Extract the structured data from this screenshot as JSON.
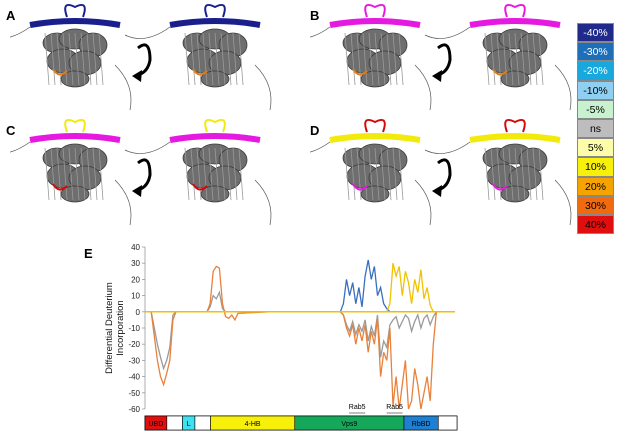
{
  "panels": [
    {
      "letter": "A",
      "highlight_colors": [
        "#1a1f8c",
        "#1a1f8c"
      ],
      "accent": "#d9801c"
    },
    {
      "letter": "B",
      "highlight_colors": [
        "#e619e0",
        "#e619e0"
      ],
      "accent": "#d9801c"
    },
    {
      "letter": "C",
      "highlight_colors": [
        "#e619e0",
        "#f2ea0a"
      ],
      "accent": "#d40a0a"
    },
    {
      "letter": "D",
      "highlight_colors": [
        "#f2ea0a",
        "#d40a0a"
      ],
      "accent": "#e619e0"
    }
  ],
  "legend": [
    {
      "label": "-40%",
      "color": "#1f2a8a",
      "text_color": "#ffffff"
    },
    {
      "label": "-30%",
      "color": "#1c6fb8",
      "text_color": "#ffffff"
    },
    {
      "label": "-20%",
      "color": "#19a8de",
      "text_color": "#ffffff"
    },
    {
      "label": "-10%",
      "color": "#8fd0f2",
      "text_color": "#000000"
    },
    {
      "label": "-5%",
      "color": "#c8f2cf",
      "text_color": "#000000"
    },
    {
      "label": "ns",
      "color": "#bdbdbd",
      "text_color": "#000000"
    },
    {
      "label": "5%",
      "color": "#fdfca8",
      "text_color": "#000000"
    },
    {
      "label": "10%",
      "color": "#f7f00a",
      "text_color": "#000000"
    },
    {
      "label": "20%",
      "color": "#f5a300",
      "text_color": "#000000"
    },
    {
      "label": "30%",
      "color": "#f06a10",
      "text_color": "#000000"
    },
    {
      "label": "40%",
      "color": "#e00f0f",
      "text_color": "#000000"
    }
  ],
  "panel_e_letter": "E",
  "chart_data": {
    "type": "line",
    "ylabel_line1": "Differential Deuterium",
    "ylabel_line2": "Incorporation",
    "ylim": [
      -60,
      40
    ],
    "yticks": [
      40,
      30,
      20,
      10,
      0,
      -10,
      -20,
      -30,
      -40,
      -50,
      -60
    ],
    "xlim": [
      0,
      100
    ],
    "series": [
      {
        "color": "#9a9a9a",
        "x": [
          0,
          1,
          2,
          3,
          4,
          5,
          6,
          7,
          8,
          9,
          10,
          12,
          14,
          16,
          18,
          20,
          21,
          22,
          23,
          24,
          25,
          26,
          27,
          28,
          29,
          30,
          40,
          50,
          60,
          63,
          64,
          65,
          66,
          67,
          68,
          69,
          70,
          71,
          72,
          73,
          74,
          75,
          76,
          77,
          78,
          79,
          80,
          81,
          82,
          83,
          84,
          85,
          86,
          87,
          88,
          89,
          90,
          91,
          92,
          93,
          94,
          95,
          96,
          97,
          98,
          99,
          100
        ],
        "y": [
          0,
          0,
          0,
          -10,
          -20,
          -28,
          -35,
          -30,
          -22,
          -2,
          0,
          0,
          0,
          0,
          0,
          0,
          3,
          10,
          8,
          12,
          2,
          0,
          0,
          0,
          0,
          0,
          0,
          0,
          0,
          0,
          -2,
          -8,
          -12,
          -6,
          -14,
          -8,
          -12,
          -5,
          -18,
          -9,
          -15,
          -2,
          -28,
          -18,
          -22,
          -8,
          -5,
          -3,
          -10,
          -6,
          -2,
          -4,
          -12,
          -6,
          -2,
          -10,
          -4,
          -2,
          -8,
          -3,
          0,
          0,
          0,
          0,
          0,
          0,
          0
        ]
      },
      {
        "color": "#e8813a",
        "x": [
          0,
          1,
          2,
          3,
          4,
          5,
          6,
          7,
          8,
          9,
          10,
          12,
          14,
          16,
          18,
          20,
          21,
          22,
          23,
          24,
          25,
          26,
          27,
          28,
          29,
          30,
          40,
          50,
          60,
          63,
          64,
          65,
          66,
          67,
          68,
          69,
          70,
          71,
          72,
          73,
          74,
          75,
          76,
          77,
          78,
          79,
          80,
          81,
          82,
          83,
          84,
          85,
          86,
          87,
          88,
          89,
          90,
          91,
          92,
          93,
          94,
          95,
          96,
          97,
          98,
          99,
          100
        ],
        "y": [
          0,
          0,
          0,
          -15,
          -30,
          -40,
          -45,
          -38,
          -30,
          -5,
          0,
          0,
          0,
          0,
          0,
          0,
          5,
          25,
          28,
          27,
          5,
          -3,
          -4,
          -2,
          -5,
          -1,
          0,
          0,
          0,
          0,
          -2,
          -10,
          -15,
          -8,
          -20,
          -10,
          -18,
          -8,
          -25,
          -12,
          -20,
          -4,
          -40,
          -25,
          -30,
          -10,
          -58,
          -40,
          -60,
          -45,
          -30,
          -60,
          -55,
          -35,
          -45,
          -60,
          -50,
          -40,
          -55,
          -20,
          0,
          0,
          0,
          0,
          0,
          0,
          0
        ]
      },
      {
        "color": "#3a6fbf",
        "x": [
          0,
          10,
          30,
          40,
          50,
          60,
          63,
          64,
          65,
          66,
          67,
          68,
          69,
          70,
          71,
          72,
          73,
          74,
          75,
          76,
          77,
          78,
          79,
          80,
          100
        ],
        "y": [
          0,
          0,
          0,
          0,
          0,
          0,
          0,
          5,
          20,
          10,
          18,
          5,
          15,
          3,
          22,
          32,
          20,
          28,
          10,
          15,
          5,
          2,
          0,
          0,
          0
        ]
      },
      {
        "color": "#f2c200",
        "x": [
          0,
          40,
          60,
          72,
          74,
          75,
          76,
          77,
          78,
          79,
          80,
          81,
          82,
          83,
          84,
          85,
          86,
          87,
          88,
          89,
          90,
          91,
          92,
          93,
          94,
          95,
          100
        ],
        "y": [
          0,
          0,
          0,
          0,
          0,
          0,
          0,
          0,
          0,
          5,
          30,
          22,
          28,
          10,
          25,
          18,
          5,
          20,
          12,
          26,
          8,
          15,
          4,
          0,
          0,
          0,
          0
        ]
      }
    ]
  },
  "domain_bar": [
    {
      "label": "UBD",
      "color": "#e01010",
      "start": 0.0,
      "end": 0.07
    },
    {
      "label": "",
      "color": "#ffffff",
      "start": 0.07,
      "end": 0.12
    },
    {
      "label": "L",
      "color": "#3fe0f0",
      "start": 0.12,
      "end": 0.16
    },
    {
      "label": "",
      "color": "#ffffff",
      "start": 0.16,
      "end": 0.21
    },
    {
      "label": "4-HB",
      "color": "#f7f00a",
      "start": 0.21,
      "end": 0.48
    },
    {
      "label": "Vps9",
      "color": "#16a85a",
      "start": 0.48,
      "end": 0.83
    },
    {
      "label": "RbBD",
      "color": "#1f7fd0",
      "start": 0.83,
      "end": 0.94
    },
    {
      "label": "",
      "color": "#ffffff",
      "start": 0.94,
      "end": 1.0
    }
  ],
  "rab_labels": [
    {
      "label": "Rab5",
      "pos": 0.68
    },
    {
      "label": "Rab5",
      "pos": 0.8
    }
  ]
}
